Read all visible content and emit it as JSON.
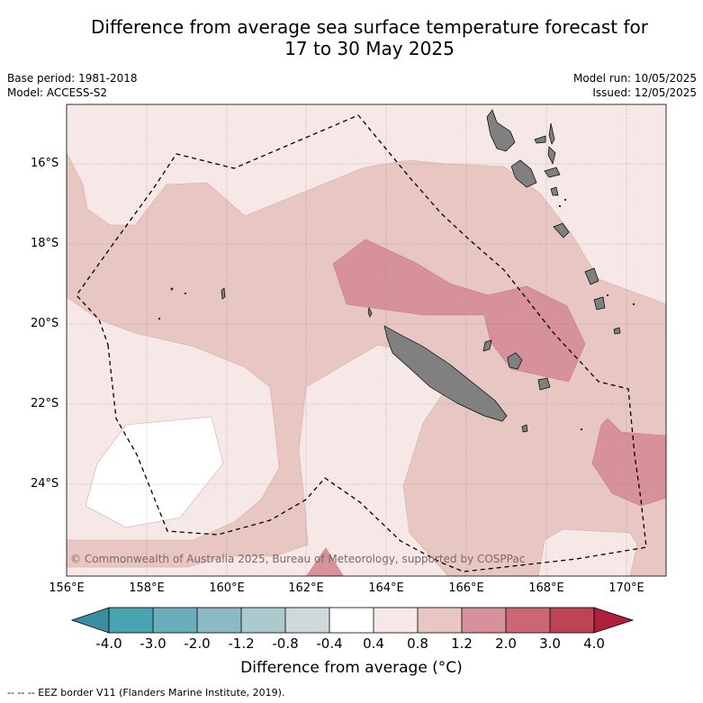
{
  "title_line1": "Difference from average sea surface temperature forecast for",
  "title_line2": "17 to 30 May 2025",
  "base_period": "Base period: 1981-2018",
  "model": "Model: ACCESS-S2",
  "model_run": "Model run: 10/05/2025",
  "issued": "Issued: 12/05/2025",
  "copyright": "© Commonwealth of Australia 2025, Bureau of Meteorology, supported by COSPPac",
  "lat_labels": [
    "16°S",
    "18°S",
    "20°S",
    "22°S",
    "24°S"
  ],
  "lon_labels": [
    "156°E",
    "158°E",
    "160°E",
    "162°E",
    "164°E",
    "166°E",
    "168°E",
    "170°E"
  ],
  "colorbar": {
    "title": "Difference from average (°C)",
    "ticks": [
      "-4.0",
      "-3.0",
      "-2.0",
      "-1.2",
      "-0.8",
      "-0.4",
      "0.4",
      "0.8",
      "1.2",
      "2.0",
      "3.0",
      "4.0"
    ],
    "colors": [
      "#3b8ea0",
      "#49a4b2",
      "#6aaebc",
      "#8bb9c4",
      "#aacacd",
      "#cfd8da",
      "#ffffff",
      "#f5e8e6",
      "#e8c7c3",
      "#d6919a",
      "#cc6674",
      "#bd4454",
      "#b11f3c"
    ]
  },
  "footnote": "-- -- -- EEZ border V11 (Flanders Marine Institute, 2019)."
}
